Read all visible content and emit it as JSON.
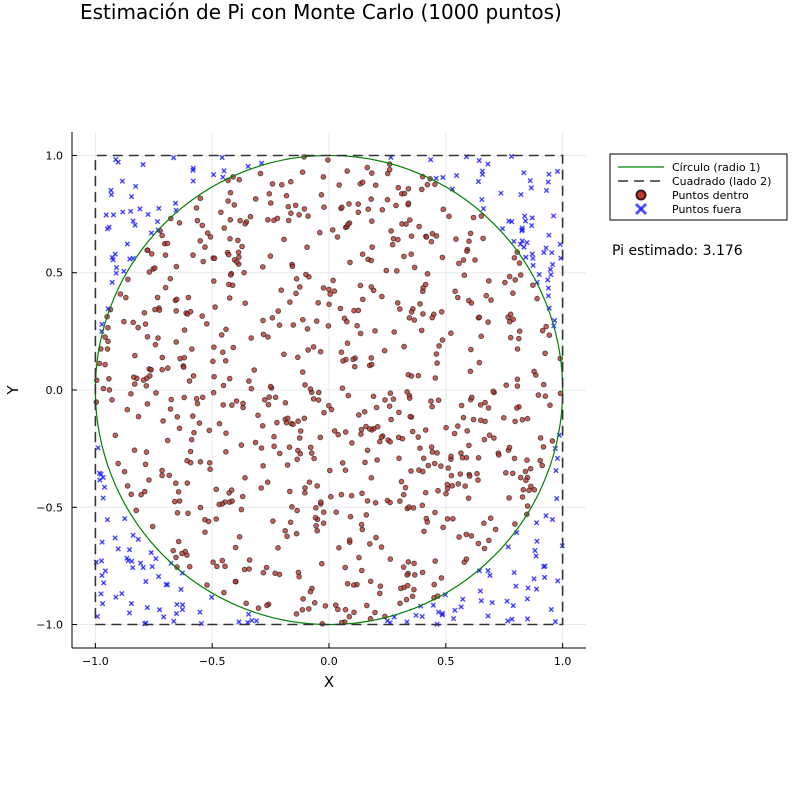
{
  "chart_data": {
    "type": "scatter",
    "title": "Estimación de Pi con Monte Carlo (1000 puntos)",
    "xlabel": "X",
    "ylabel": "Y",
    "xlim": [
      -1.1,
      1.1
    ],
    "ylim": [
      -1.1,
      1.1
    ],
    "xticks": [
      -1.0,
      -0.5,
      0.0,
      0.5,
      1.0
    ],
    "yticks": [
      -1.0,
      -0.5,
      0.0,
      0.5,
      1.0
    ],
    "xtick_labels": [
      "−1.0",
      "−0.5",
      "0.0",
      "0.5",
      "1.0"
    ],
    "ytick_labels": [
      "−1.0",
      "−0.5",
      "0.0",
      "0.5",
      "1.0"
    ],
    "grid": true,
    "legend_position": "outside-top-right",
    "annotation": "Pi estimado: 3.176",
    "total_points": 1000,
    "series": [
      {
        "name": "Círculo (radio 1)",
        "kind": "line",
        "color": "#008000",
        "shape": "circle",
        "center": [
          0,
          0
        ],
        "radius": 1
      },
      {
        "name": "Cuadrado (lado 2)",
        "kind": "dashed-line",
        "color": "#333333",
        "x": [
          -1,
          1,
          1,
          -1,
          -1
        ],
        "y": [
          -1,
          -1,
          1,
          1,
          -1
        ]
      },
      {
        "name": "Puntos dentro",
        "kind": "scatter",
        "marker": "circle",
        "color": "#c0392b",
        "stroke": "#3a1a1a",
        "count": 794
      },
      {
        "name": "Puntos fuera",
        "kind": "scatter",
        "marker": "x",
        "color": "#1a1aff",
        "count": 206
      }
    ]
  }
}
